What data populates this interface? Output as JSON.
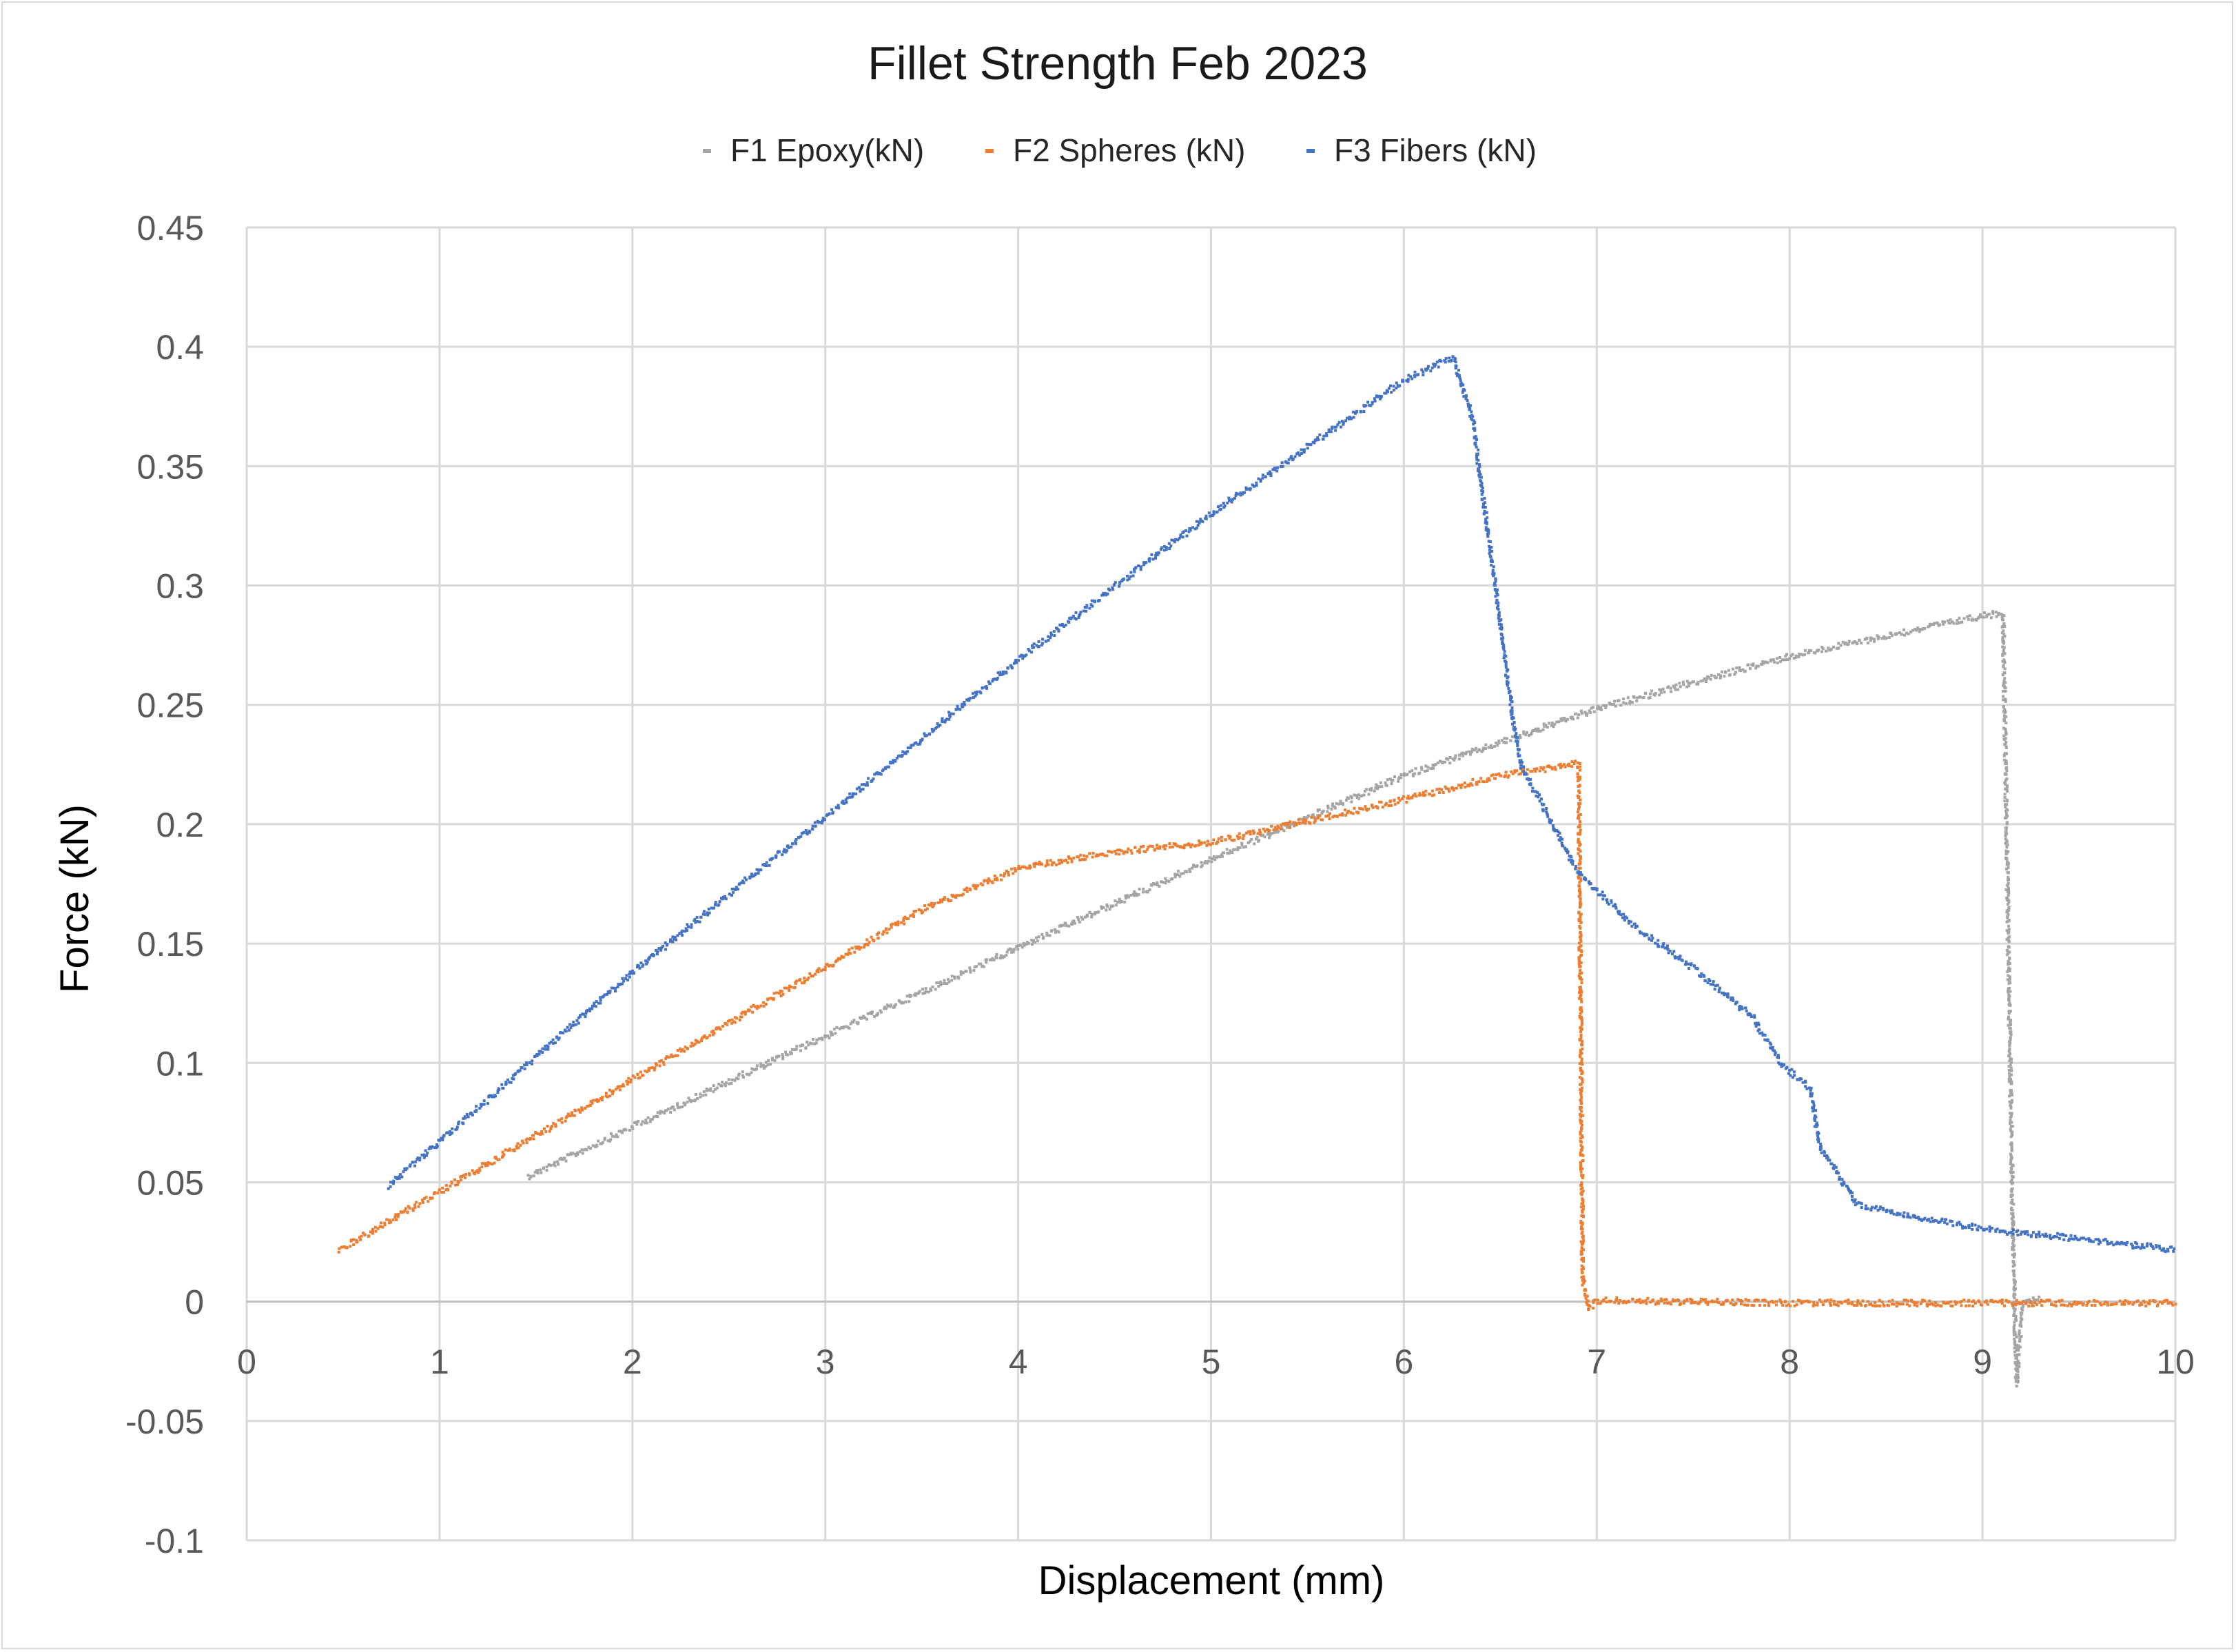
{
  "chart_data": {
    "type": "scatter",
    "title": "Fillet Strength Feb 2023",
    "xlabel": "Displacement (mm)",
    "ylabel": "Force (kN)",
    "xlim": [
      0,
      10
    ],
    "ylim": [
      -0.1,
      0.45
    ],
    "x_ticks": [
      "0",
      "1",
      "2",
      "3",
      "4",
      "5",
      "6",
      "7",
      "8",
      "9",
      "10"
    ],
    "y_ticks": [
      "-0.1",
      "-0.05",
      "0",
      "0.05",
      "0.1",
      "0.15",
      "0.2",
      "0.25",
      "0.3",
      "0.35",
      "0.4",
      "0.45"
    ],
    "grid": true,
    "legend_position": "top",
    "series": [
      {
        "name": "F1 Epoxy(kN)",
        "color": "#a5a5a5",
        "points": [
          [
            1.45,
            0.053
          ],
          [
            2.0,
            0.074
          ],
          [
            3.0,
            0.112
          ],
          [
            4.0,
            0.149
          ],
          [
            5.0,
            0.186
          ],
          [
            6.0,
            0.221
          ],
          [
            7.0,
            0.249
          ],
          [
            8.0,
            0.271
          ],
          [
            9.0,
            0.288
          ],
          [
            9.1,
            0.289
          ],
          [
            9.15,
            0.03
          ],
          [
            9.17,
            -0.034
          ],
          [
            9.2,
            0.0
          ],
          [
            9.3,
            0.002
          ]
        ]
      },
      {
        "name": "F2 Spheres (kN)",
        "color": "#ed7d31",
        "points": [
          [
            0.47,
            0.022
          ],
          [
            1.0,
            0.047
          ],
          [
            2.0,
            0.094
          ],
          [
            3.0,
            0.141
          ],
          [
            3.5,
            0.165
          ],
          [
            4.0,
            0.182
          ],
          [
            4.5,
            0.189
          ],
          [
            5.0,
            0.193
          ],
          [
            5.5,
            0.202
          ],
          [
            6.0,
            0.211
          ],
          [
            6.5,
            0.221
          ],
          [
            6.9,
            0.226
          ],
          [
            6.92,
            0.01
          ],
          [
            6.95,
            -0.002
          ],
          [
            7.0,
            0.001
          ],
          [
            8.0,
            0.0
          ],
          [
            9.0,
            0.0
          ],
          [
            10.0,
            0.0
          ]
        ]
      },
      {
        "name": "F3 Fibers (kN)",
        "color": "#4472c4",
        "points": [
          [
            0.73,
            0.049
          ],
          [
            1.0,
            0.068
          ],
          [
            2.0,
            0.139
          ],
          [
            3.0,
            0.204
          ],
          [
            4.0,
            0.27
          ],
          [
            5.0,
            0.331
          ],
          [
            6.0,
            0.387
          ],
          [
            6.25,
            0.396
          ],
          [
            6.35,
            0.37
          ],
          [
            6.45,
            0.31
          ],
          [
            6.55,
            0.25
          ],
          [
            6.6,
            0.225
          ],
          [
            6.7,
            0.21
          ],
          [
            6.9,
            0.18
          ],
          [
            7.2,
            0.157
          ],
          [
            7.5,
            0.14
          ],
          [
            7.8,
            0.12
          ],
          [
            7.95,
            0.1
          ],
          [
            8.1,
            0.09
          ],
          [
            8.15,
            0.065
          ],
          [
            8.35,
            0.041
          ],
          [
            8.6,
            0.037
          ],
          [
            9.0,
            0.031
          ],
          [
            9.5,
            0.027
          ],
          [
            10.0,
            0.022
          ]
        ]
      }
    ]
  }
}
